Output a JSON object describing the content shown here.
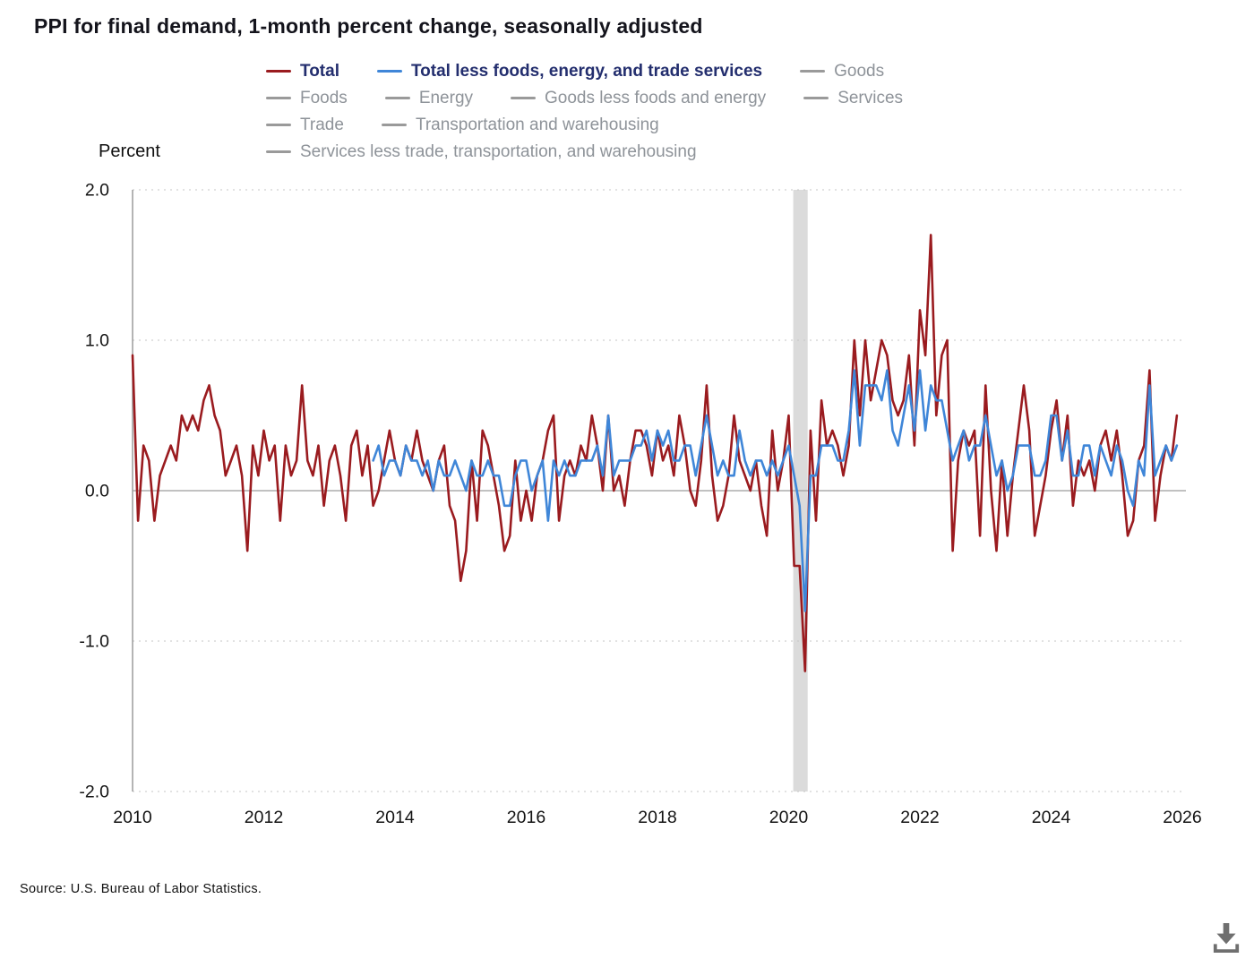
{
  "title": "PPI for final demand, 1-month percent change, seasonally adjusted",
  "y_axis_title": "Percent",
  "source": "Source: U.S. Bureau of Labor Statistics.",
  "icons": {
    "download": "download-icon"
  },
  "colors": {
    "total_series": "#9a1b1f",
    "core_series": "#3f86d8",
    "legend_active_text": "#232e6e",
    "legend_inactive": "#9a9a9a",
    "gridline": "#c4c4c4",
    "zero_line": "#9c9c9c",
    "axis_line": "#9c9c9c",
    "recession_band": "#dbdbdb",
    "tick_text": "#131313",
    "download_icon": "#6f6f6f"
  },
  "legend": {
    "items": [
      {
        "label": "Total",
        "color": "#9a1b1f",
        "active": true
      },
      {
        "label": "Total less foods, energy, and trade services",
        "color": "#3f86d8",
        "active": true
      },
      {
        "label": "Goods",
        "color": "#9a9a9a",
        "active": false
      },
      {
        "label": "Foods",
        "color": "#9a9a9a",
        "active": false
      },
      {
        "label": "Energy",
        "color": "#9a9a9a",
        "active": false
      },
      {
        "label": "Goods less foods and energy",
        "color": "#9a9a9a",
        "active": false
      },
      {
        "label": "Services",
        "color": "#9a9a9a",
        "active": false
      },
      {
        "label": "Trade",
        "color": "#9a9a9a",
        "active": false
      },
      {
        "label": "Transportation and warehousing",
        "color": "#9a9a9a",
        "active": false
      },
      {
        "label": "Services less trade, transportation, and warehousing",
        "color": "#9a9a9a",
        "active": false
      }
    ]
  },
  "chart_data": {
    "type": "line",
    "title": "PPI for final demand, 1-month percent change, seasonally adjusted",
    "xlabel": "",
    "ylabel": "Percent",
    "ylim": [
      -2.0,
      2.0
    ],
    "yticks": [
      2.0,
      1.0,
      0.0,
      -1.0,
      -2.0
    ],
    "xticks": [
      2010,
      2012,
      2014,
      2016,
      2018,
      2020,
      2022,
      2024,
      2026
    ],
    "x_range": [
      2010,
      2026
    ],
    "frequency": "monthly",
    "grid": "dotted-horizontal",
    "legend_position": "top",
    "recession_band": {
      "from": 2020.07,
      "to": 2020.29
    },
    "series": [
      {
        "name": "Total",
        "color": "#9a1b1f",
        "visible": true,
        "start": "2010-01",
        "values": [
          0.9,
          -0.2,
          0.3,
          0.2,
          -0.2,
          0.1,
          0.2,
          0.3,
          0.2,
          0.5,
          0.4,
          0.5,
          0.4,
          0.6,
          0.7,
          0.5,
          0.4,
          0.1,
          0.2,
          0.3,
          0.1,
          -0.4,
          0.3,
          0.1,
          0.4,
          0.2,
          0.3,
          -0.2,
          0.3,
          0.1,
          0.2,
          0.7,
          0.2,
          0.1,
          0.3,
          -0.1,
          0.2,
          0.3,
          0.1,
          -0.2,
          0.3,
          0.4,
          0.1,
          0.3,
          -0.1,
          0.0,
          0.2,
          0.4,
          0.2,
          0.1,
          0.3,
          0.2,
          0.4,
          0.2,
          0.1,
          0.0,
          0.2,
          0.3,
          -0.1,
          -0.2,
          -0.6,
          -0.4,
          0.2,
          -0.2,
          0.4,
          0.3,
          0.1,
          -0.1,
          -0.4,
          -0.3,
          0.2,
          -0.2,
          0.0,
          -0.2,
          0.1,
          0.2,
          0.4,
          0.5,
          -0.2,
          0.1,
          0.2,
          0.1,
          0.3,
          0.2,
          0.5,
          0.3,
          0.0,
          0.5,
          0.0,
          0.1,
          -0.1,
          0.2,
          0.4,
          0.4,
          0.3,
          0.1,
          0.4,
          0.2,
          0.3,
          0.1,
          0.5,
          0.3,
          0.0,
          -0.1,
          0.2,
          0.7,
          0.1,
          -0.2,
          -0.1,
          0.1,
          0.5,
          0.2,
          0.1,
          0.0,
          0.2,
          -0.1,
          -0.3,
          0.4,
          0.0,
          0.2,
          0.5,
          -0.5,
          -0.5,
          -1.2,
          0.4,
          -0.2,
          0.6,
          0.3,
          0.4,
          0.3,
          0.1,
          0.3,
          1.0,
          0.5,
          1.0,
          0.6,
          0.8,
          1.0,
          0.9,
          0.6,
          0.5,
          0.6,
          0.9,
          0.3,
          1.2,
          0.9,
          1.7,
          0.5,
          0.9,
          1.0,
          -0.4,
          0.2,
          0.4,
          0.3,
          0.4,
          -0.3,
          0.7,
          0.0,
          -0.4,
          0.2,
          -0.3,
          0.1,
          0.4,
          0.7,
          0.4,
          -0.3,
          -0.1,
          0.1,
          0.4,
          0.6,
          0.2,
          0.5,
          -0.1,
          0.2,
          0.1,
          0.2,
          0.0,
          0.3,
          0.4,
          0.2,
          0.4,
          0.1,
          -0.3,
          -0.2,
          0.2,
          0.3,
          0.8,
          -0.2,
          0.1,
          0.3,
          0.2,
          0.5
        ]
      },
      {
        "name": "Total less foods, energy, and trade services",
        "color": "#3f86d8",
        "visible": true,
        "start": "2013-09",
        "values": [
          0.2,
          0.3,
          0.1,
          0.2,
          0.2,
          0.1,
          0.3,
          0.2,
          0.2,
          0.1,
          0.2,
          0.0,
          0.2,
          0.1,
          0.1,
          0.2,
          0.1,
          0.0,
          0.2,
          0.1,
          0.1,
          0.2,
          0.1,
          0.1,
          -0.1,
          -0.1,
          0.1,
          0.2,
          0.2,
          0.0,
          0.1,
          0.2,
          -0.2,
          0.2,
          0.1,
          0.2,
          0.1,
          0.1,
          0.2,
          0.2,
          0.2,
          0.3,
          0.1,
          0.5,
          0.1,
          0.2,
          0.2,
          0.2,
          0.3,
          0.3,
          0.4,
          0.2,
          0.4,
          0.3,
          0.4,
          0.2,
          0.2,
          0.3,
          0.3,
          0.1,
          0.3,
          0.5,
          0.3,
          0.1,
          0.2,
          0.1,
          0.1,
          0.4,
          0.2,
          0.1,
          0.2,
          0.2,
          0.1,
          0.2,
          0.1,
          0.2,
          0.3,
          0.1,
          -0.1,
          -0.8,
          0.1,
          0.1,
          0.3,
          0.3,
          0.3,
          0.2,
          0.2,
          0.4,
          0.8,
          0.3,
          0.7,
          0.7,
          0.7,
          0.6,
          0.8,
          0.4,
          0.3,
          0.5,
          0.7,
          0.4,
          0.8,
          0.4,
          0.7,
          0.6,
          0.6,
          0.4,
          0.2,
          0.3,
          0.4,
          0.2,
          0.3,
          0.3,
          0.5,
          0.3,
          0.1,
          0.2,
          0.0,
          0.1,
          0.3,
          0.3,
          0.3,
          0.1,
          0.1,
          0.2,
          0.5,
          0.5,
          0.2,
          0.4,
          0.1,
          0.1,
          0.3,
          0.3,
          0.1,
          0.3,
          0.2,
          0.1,
          0.3,
          0.2,
          0.0,
          -0.1,
          0.2,
          0.1,
          0.7,
          0.1,
          0.2,
          0.3,
          0.2,
          0.3
        ]
      },
      {
        "name": "Goods",
        "visible": false
      },
      {
        "name": "Foods",
        "visible": false
      },
      {
        "name": "Energy",
        "visible": false
      },
      {
        "name": "Goods less foods and energy",
        "visible": false
      },
      {
        "name": "Services",
        "visible": false
      },
      {
        "name": "Trade",
        "visible": false
      },
      {
        "name": "Transportation and warehousing",
        "visible": false
      },
      {
        "name": "Services less trade, transportation, and warehousing",
        "visible": false
      }
    ]
  }
}
